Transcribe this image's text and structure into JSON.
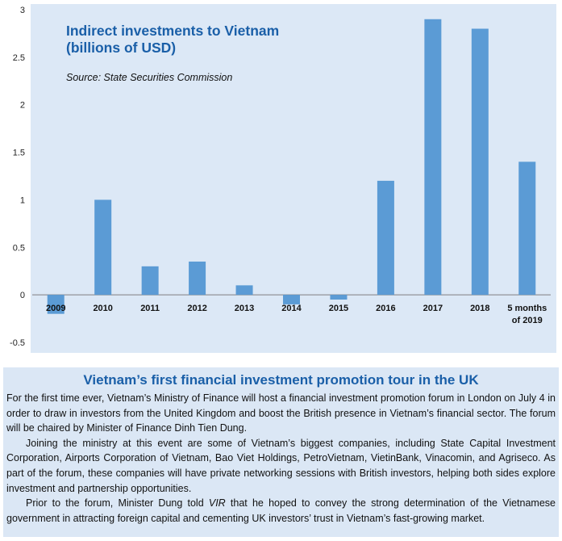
{
  "colors": {
    "bar": "#5b9bd5",
    "plot_bg": "#dce8f6",
    "title": "#1a5fa8",
    "info_bg": "#dbe7f5"
  },
  "chart_data": {
    "type": "bar",
    "title": "Indirect investments to Vietnam",
    "subtitle": "(billions of USD)",
    "source": "Source: State Securities Commission",
    "categories": [
      "2009",
      "2010",
      "2011",
      "2012",
      "2013",
      "2014",
      "2015",
      "2016",
      "2017",
      "2018",
      "5 months\nof 2019"
    ],
    "values": [
      -0.2,
      1.0,
      0.3,
      0.35,
      0.1,
      -0.1,
      -0.05,
      1.2,
      2.9,
      2.8,
      1.4
    ],
    "yticks": [
      3,
      2.5,
      2,
      1.5,
      1,
      0.5,
      0,
      -0.5
    ],
    "ytick_labels": [
      "3",
      "2.5",
      "2",
      "1.5",
      "1",
      "0.5",
      "0",
      "-0.5"
    ],
    "ylim": [
      -0.5,
      3
    ],
    "xlabel": "",
    "ylabel": "",
    "grid": false,
    "legend": "none"
  },
  "article": {
    "heading": "Vietnam’s first financial investment promotion tour in the UK",
    "para1": "For the first time ever, Vietnam’s Ministry of Finance will host a financial investment promotion forum in London on July 4 in order to draw in investors from the United Kingdom and boost the British presence in Vietnam’s financial sector. The forum will be chaired by Minister of Finance Dinh Tien Dung.",
    "para2": "Joining the ministry at this event are some of Vietnam’s biggest companies, including State Capital Investment Corporation, Airports Corporation of Vietnam, Bao Viet Holdings, PetroVietnam, VietinBank, Vinacomin, and Agriseco. As part of the forum, these companies will have private networking sessions with British investors, helping both sides explore investment and partnership opportunities.",
    "para3_before": "Prior to the forum, Minister Dung told ",
    "para3_em": "VIR",
    "para3_after": " that he hoped to convey the strong determination of the Vietnamese government in attracting foreign capital and cementing UK investors’ trust in Vietnam’s fast-growing market."
  }
}
